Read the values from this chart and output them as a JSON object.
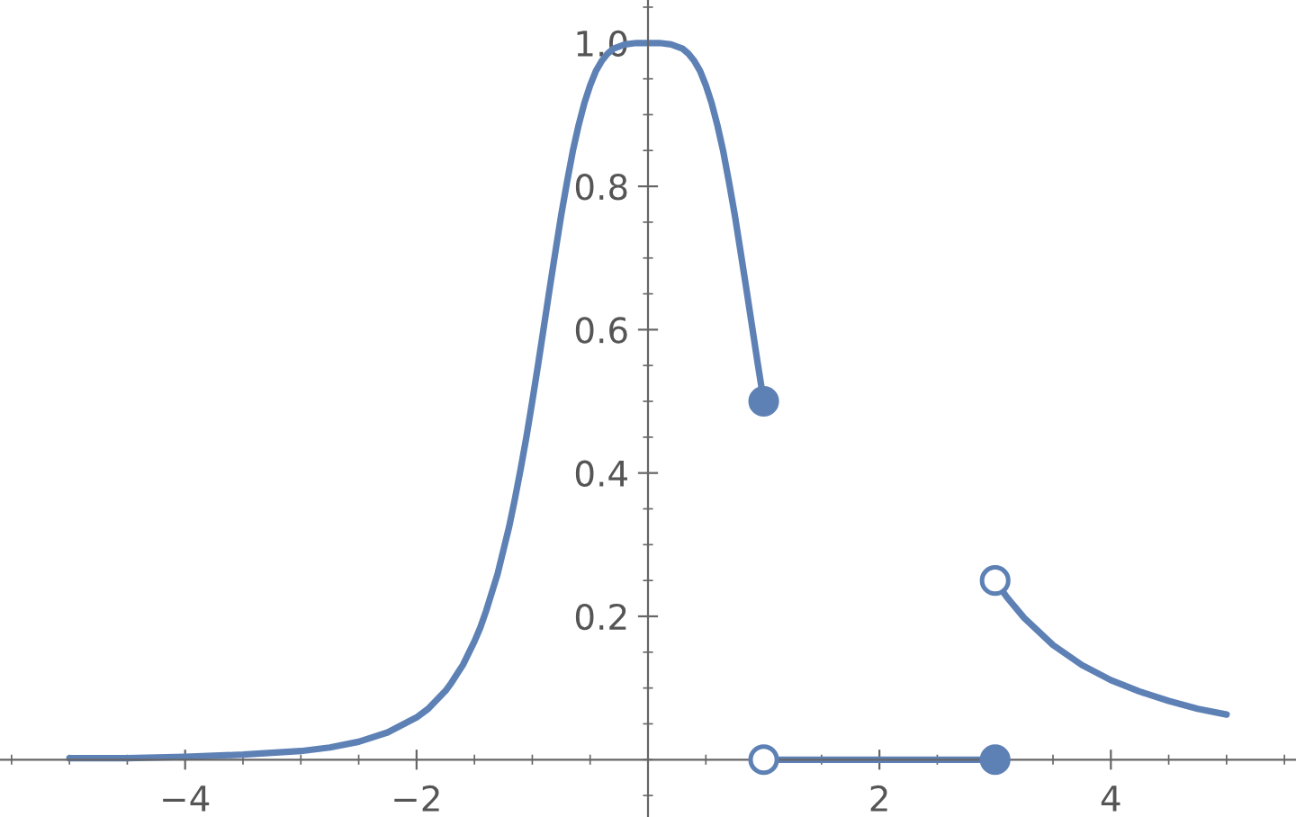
{
  "chart_data": {
    "type": "line",
    "xlim": [
      -5.6,
      5.6
    ],
    "ylim": [
      -0.08,
      1.06
    ],
    "xticks": [
      {
        "value": -4,
        "label": "−4"
      },
      {
        "value": -2,
        "label": "−2"
      },
      2,
      4
    ],
    "yticks": [
      0.2,
      0.4,
      0.6,
      0.8,
      {
        "value": 1.0,
        "label": "1.0"
      }
    ],
    "grid": false,
    "marker": "none",
    "line_style": "solid",
    "series": [
      {
        "color": "#5e81b5",
        "x": [
          -5,
          -4.5,
          -4,
          -3.5,
          -3,
          -2.75,
          -2.5,
          -2.25,
          -2,
          -1.9,
          -1.75,
          -1.7,
          -1.6,
          -1.5,
          -1.45,
          -1.4,
          -1.3,
          -1.2,
          -1.15,
          -1.1,
          -1.05,
          -1,
          -0.95,
          -0.9,
          -0.85,
          -0.8,
          -0.75,
          -0.7,
          -0.65,
          -0.6,
          -0.55,
          -0.5,
          -0.45,
          -0.4,
          -0.35,
          -0.3,
          -0.2,
          -0.1,
          0,
          0.1,
          0.2,
          0.3,
          0.35,
          0.4,
          0.45,
          0.5,
          0.55,
          0.6,
          0.65,
          0.7,
          0.75,
          0.8,
          0.85,
          0.9,
          0.95,
          1
        ],
        "values": [
          0.002,
          0.002,
          0.004,
          0.007,
          0.012,
          0.017,
          0.025,
          0.038,
          0.059,
          0.071,
          0.096,
          0.107,
          0.132,
          0.165,
          0.184,
          0.207,
          0.259,
          0.325,
          0.364,
          0.406,
          0.451,
          0.5,
          0.551,
          0.604,
          0.657,
          0.709,
          0.76,
          0.806,
          0.849,
          0.885,
          0.916,
          0.941,
          0.961,
          0.975,
          0.985,
          0.992,
          0.998,
          1,
          1,
          1,
          0.998,
          0.992,
          0.985,
          0.975,
          0.961,
          0.941,
          0.916,
          0.885,
          0.849,
          0.806,
          0.76,
          0.709,
          0.657,
          0.604,
          0.551,
          0.5
        ]
      },
      {
        "color": "#5e81b5",
        "x": [
          1,
          3
        ],
        "values": [
          0,
          0
        ]
      },
      {
        "color": "#5e81b5",
        "x": [
          3,
          3.1,
          3.25,
          3.5,
          3.75,
          4,
          4.25,
          4.5,
          4.75,
          5
        ],
        "values": [
          0.25,
          0.227,
          0.198,
          0.16,
          0.132,
          0.111,
          0.095,
          0.082,
          0.071,
          0.063
        ]
      },
      {
        "type": "scatter",
        "color": "#5e81b5",
        "marker": "circle",
        "x": [
          1,
          3
        ],
        "values": [
          0.5,
          0
        ]
      },
      {
        "type": "scatter",
        "color": "#ffffff",
        "marker": "circle",
        "x": [
          1,
          3
        ],
        "values": [
          0,
          0.25
        ]
      }
    ]
  }
}
